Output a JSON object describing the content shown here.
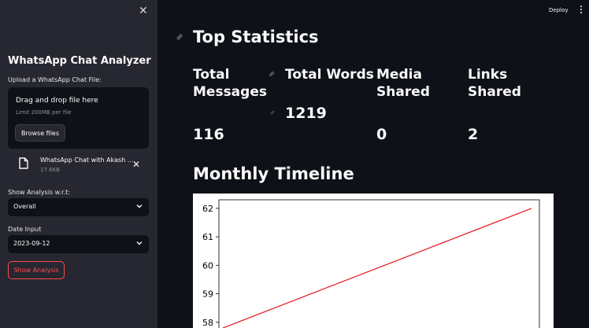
{
  "sidebar": {
    "close_icon": "close-icon",
    "title": "WhatsApp Chat Analyzer",
    "upload_label": "Upload a WhatsApp Chat File:",
    "uploader": {
      "drag_text": "Drag and drop file here",
      "limit_text": "Limit 200MB per file",
      "browse_label": "Browse files"
    },
    "file": {
      "name": "WhatsApp Chat with Akash ...",
      "size": "17.6KB"
    },
    "analysis_label": "Show Analysis w.r.t:",
    "analysis_value": "Overall",
    "date_label": "Date Input",
    "date_value": "2023-09-12",
    "show_button": "Show Analysis"
  },
  "header": {
    "deploy_label": "Deploy"
  },
  "main": {
    "title": "Top Statistics",
    "stats": [
      {
        "label_line1": "Total",
        "label_line2": "Messages",
        "value": "116"
      },
      {
        "label_line1": "Total Words",
        "label_line2": "",
        "value": "1219"
      },
      {
        "label_line1": "Media",
        "label_line2": "Shared",
        "value": "0"
      },
      {
        "label_line1": "Links",
        "label_line2": "Shared",
        "value": "2"
      }
    ],
    "timeline_title": "Monthly Timeline"
  },
  "colors": {
    "background": "#0e1117",
    "sidebar": "#262730",
    "accent": "#ff4b4b",
    "line": "#e8262b"
  },
  "chart_data": {
    "type": "line",
    "title": "",
    "xlabel": "",
    "ylabel": "",
    "y_ticks": [
      58,
      59,
      60,
      61,
      62
    ],
    "ylim": [
      57.8,
      62.3
    ],
    "series": [
      {
        "x": [
          0,
          1
        ],
        "values": [
          57.8,
          62
        ]
      }
    ],
    "grid": false
  }
}
